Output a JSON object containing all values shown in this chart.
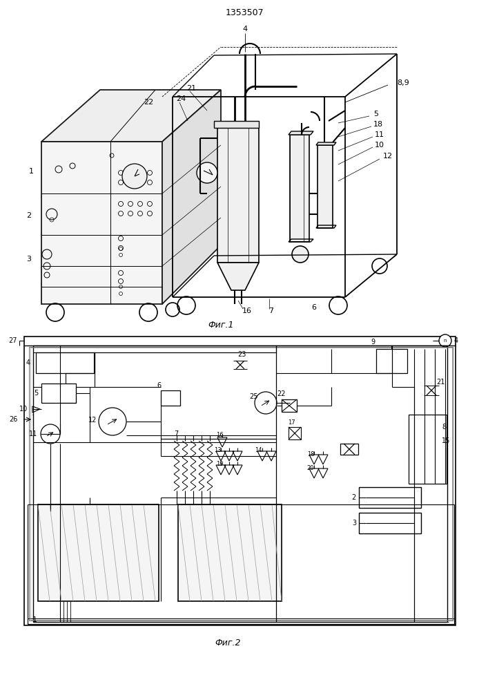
{
  "patent_number": "1353507",
  "fig1_caption": "Фиг.1",
  "fig2_caption": "Фиг.2",
  "bg": "#ffffff",
  "lc": "#000000"
}
